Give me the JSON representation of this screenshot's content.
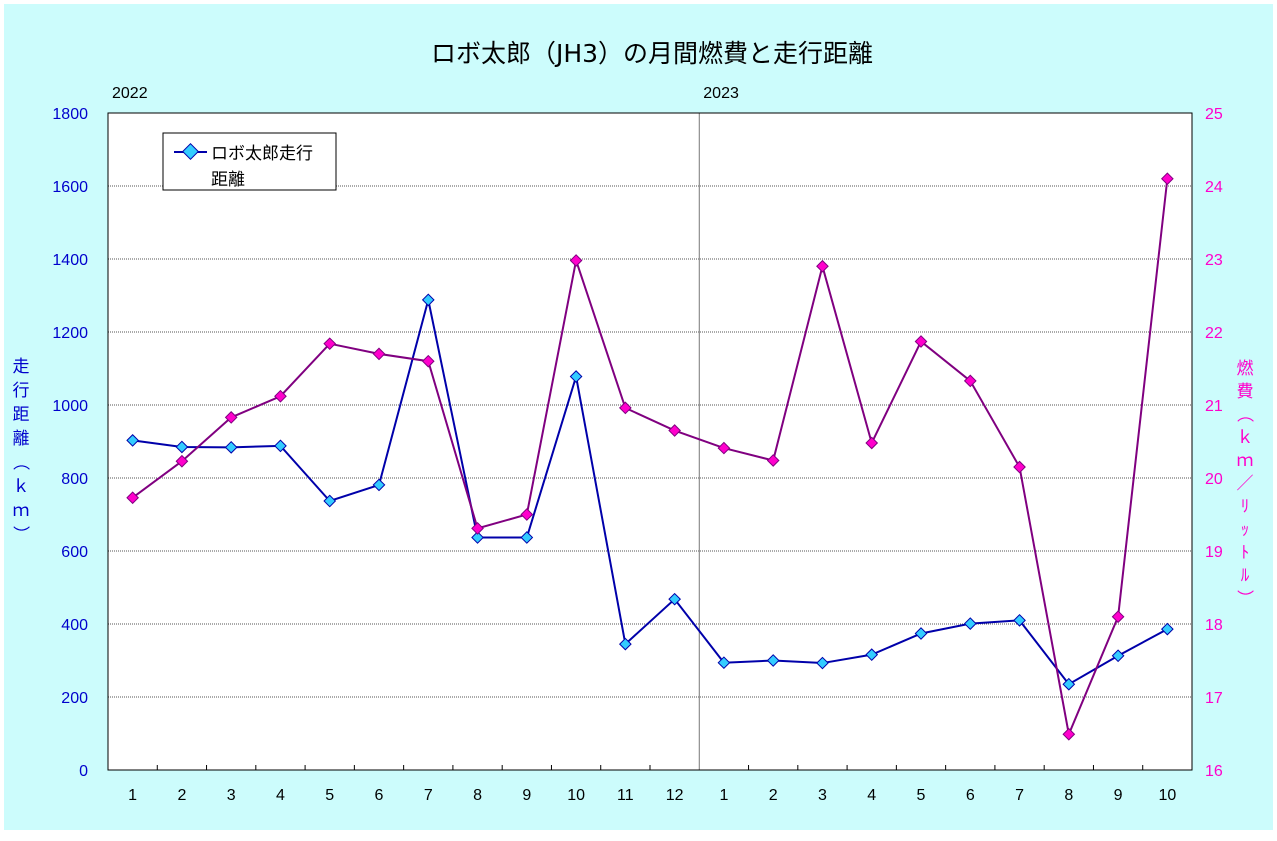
{
  "chart_data": {
    "type": "line",
    "title": "ロボ太郎（JH3）の月間燃費と走行距離",
    "categories": [
      "1",
      "2",
      "3",
      "4",
      "5",
      "6",
      "7",
      "8",
      "9",
      "10",
      "11",
      "12",
      "1",
      "2",
      "3",
      "4",
      "5",
      "6",
      "7",
      "8",
      "9",
      "10"
    ],
    "year_labels": [
      {
        "label": "2022",
        "index": 0
      },
      {
        "label": "2023",
        "index": 12
      }
    ],
    "y_left": {
      "label": "走行距離（ｋｍ）",
      "ylim": [
        0,
        1800
      ],
      "ticks": [
        0,
        200,
        400,
        600,
        800,
        1000,
        1200,
        1400,
        1600,
        1800
      ],
      "color": "#0000cc"
    },
    "y_right": {
      "label": "燃費（ｋｍ／ﾘｯﾄﾙ）",
      "ylim": [
        16,
        25
      ],
      "ticks": [
        16,
        17,
        18,
        19,
        20,
        21,
        22,
        23,
        24,
        25
      ],
      "color": "#ff00cc"
    },
    "grid": true,
    "legend": {
      "placement": "top-left",
      "entries": [
        "ロボ太郎走行",
        "距離"
      ]
    },
    "series": [
      {
        "name": "ロボ太郎走行距離",
        "axis": "left",
        "line_color": "#0000aa",
        "marker_color": "#33ccff",
        "values": [
          903,
          885,
          884,
          888,
          737,
          781,
          1288,
          637,
          637,
          1078,
          345,
          468,
          294,
          300,
          293,
          316,
          374,
          401,
          410,
          235,
          313,
          386
        ]
      },
      {
        "axis": "right",
        "line_color": "#800080",
        "marker_color": "#ff00cc",
        "values": [
          19.73,
          20.23,
          20.83,
          21.12,
          21.84,
          21.7,
          21.6,
          19.31,
          19.5,
          22.98,
          20.96,
          20.65,
          20.41,
          20.24,
          22.9,
          20.48,
          21.87,
          21.33,
          20.15,
          16.49,
          18.1,
          24.1
        ]
      }
    ]
  }
}
